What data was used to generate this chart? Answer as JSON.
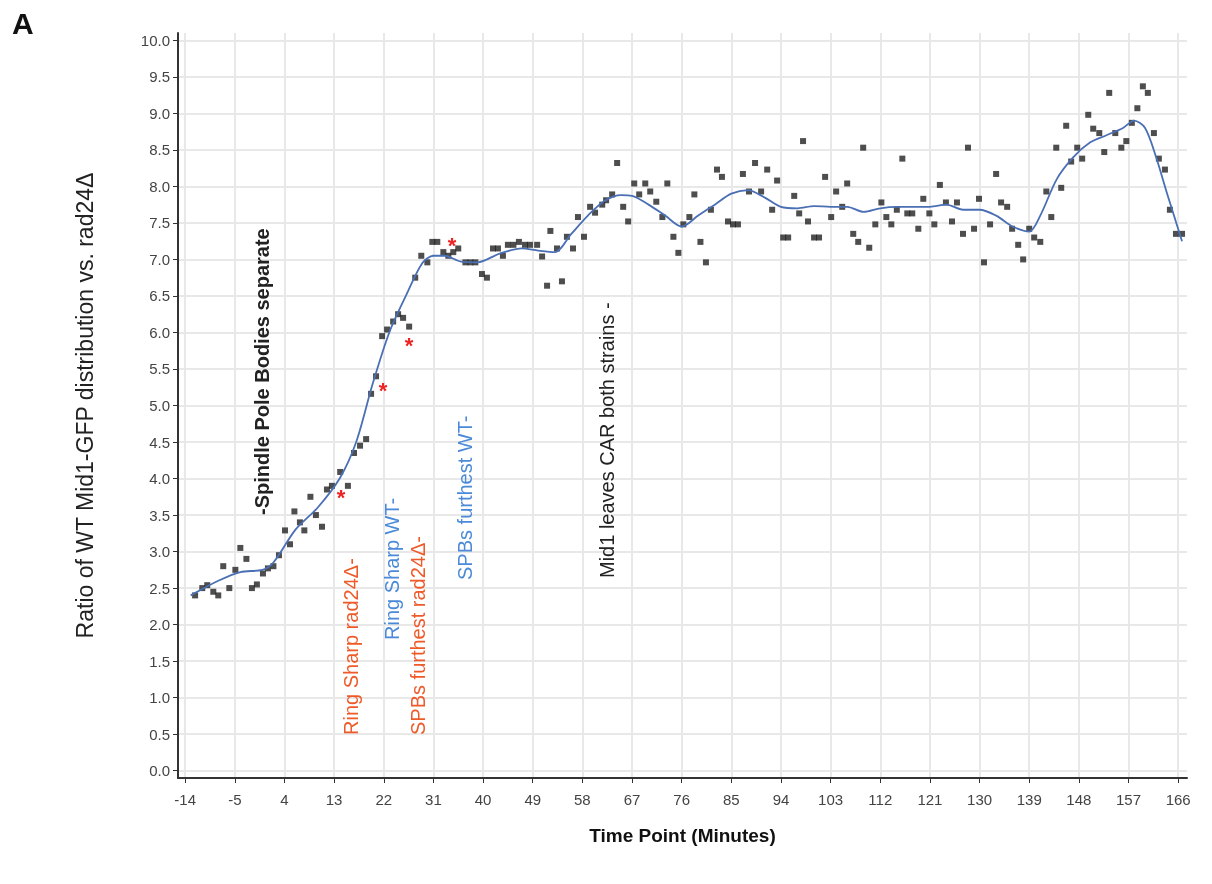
{
  "chart_data": {
    "type": "scatter",
    "xlabel": "Time Point (Minutes)",
    "ylabel": "Ratio of WT Mid1-GFP distribution vs. rad24Δ",
    "xlim": [
      -15.3,
      167.6
    ],
    "ylim": [
      -0.1,
      10.1
    ],
    "xticks": [
      -14,
      -5,
      4,
      13,
      22,
      31,
      40,
      49,
      58,
      67,
      76,
      85,
      94,
      103,
      112,
      121,
      130,
      139,
      148,
      157,
      166
    ],
    "yticks": [
      {
        "value": 0,
        "label": "0.0"
      },
      0.5,
      {
        "value": 1,
        "label": "1.0"
      },
      1.5,
      {
        "value": 2,
        "label": "2.0"
      },
      2.5,
      {
        "value": 3,
        "label": "3.0"
      },
      3.5,
      {
        "value": 4,
        "label": "4.0"
      },
      4.5,
      {
        "value": 5,
        "label": "5.0"
      },
      5.5,
      {
        "value": 6,
        "label": "6.0"
      },
      6.5,
      {
        "value": 7,
        "label": "7.0"
      },
      7.5,
      {
        "value": 8,
        "label": "8.0"
      },
      8.5,
      {
        "value": 9,
        "label": "9.0"
      },
      9.5,
      {
        "value": 10,
        "label": "10.0"
      }
    ],
    "grid": true,
    "series": [
      {
        "type": "scatter",
        "marker": "square",
        "color": "#222222",
        "x": [
          -12.2,
          -10.9,
          -10,
          -8.9,
          -8,
          -7.1,
          -6,
          -4.9,
          -4,
          -2.9,
          -1.9,
          -1,
          0.1,
          1,
          2,
          3,
          4.1,
          5,
          5.8,
          6.8,
          7.6,
          8.7,
          9.7,
          10.8,
          11.7,
          12.6,
          14.1,
          15.5,
          16.6,
          17.7,
          18.8,
          19.7,
          20.6,
          21.7,
          22.6,
          23.7,
          24.6,
          25.5,
          26.6,
          27.7,
          28.8,
          29.9,
          30.8,
          31.7,
          32.8,
          33.7,
          34.6,
          35.5,
          36.8,
          37.7,
          38.6,
          39.8,
          40.7,
          41.8,
          42.7,
          43.6,
          44.5,
          45.5,
          46.5,
          47.6,
          48.5,
          49.8,
          50.7,
          51.6,
          52.2,
          53.4,
          54.3,
          55.2,
          56.3,
          57.2,
          58.3,
          59.4,
          60.3,
          61.6,
          62.3,
          63.4,
          64.3,
          65.4,
          66.3,
          67.4,
          68.3,
          69.4,
          70.3,
          71.4,
          72.5,
          73.4,
          74.5,
          75.4,
          76.3,
          77.4,
          78.3,
          79.4,
          80.4,
          81.3,
          82.4,
          83.3,
          84.4,
          85.3,
          86.2,
          87.1,
          88.2,
          89.3,
          90.4,
          91.5,
          92.4,
          93.3,
          94.4,
          95.3,
          96.4,
          97.3,
          98,
          98.9,
          100,
          100.9,
          102,
          103.1,
          104,
          105.1,
          106,
          107.1,
          108,
          108.9,
          110,
          111.1,
          112.2,
          113.1,
          114,
          115,
          116,
          116.9,
          117.8,
          118.9,
          119.8,
          120.9,
          121.8,
          122.8,
          123.9,
          125,
          125.9,
          127,
          127.9,
          129,
          129.9,
          130.8,
          131.9,
          133,
          133.9,
          135,
          135.9,
          137,
          137.9,
          139,
          139.9,
          141,
          142.1,
          143,
          143.9,
          144.8,
          145.7,
          146.6,
          147.7,
          148.6,
          149.7,
          150.6,
          151.7,
          152.6,
          153.5,
          154.6,
          155.7,
          156.6,
          157.6,
          158.6,
          159.6,
          160.5,
          161.6,
          162.5,
          163.6,
          164.5,
          165.6,
          166.7
        ],
        "values": [
          2.4,
          2.5,
          2.54,
          2.45,
          2.4,
          2.8,
          2.5,
          2.75,
          3.05,
          2.9,
          2.5,
          2.55,
          2.7,
          2.77,
          2.8,
          2.95,
          3.29,
          3.1,
          3.55,
          3.4,
          3.29,
          3.75,
          3.5,
          3.34,
          3.85,
          3.9,
          4.09,
          3.9,
          4.35,
          4.45,
          4.54,
          5.16,
          5.4,
          5.95,
          6.04,
          6.15,
          6.25,
          6.2,
          6.08,
          6.75,
          7.05,
          6.96,
          7.24,
          7.24,
          7.1,
          7.05,
          7.1,
          7.15,
          6.96,
          6.96,
          6.96,
          6.8,
          6.75,
          7.15,
          7.15,
          7.05,
          7.2,
          7.2,
          7.24,
          7.2,
          7.2,
          7.2,
          7.04,
          6.64,
          7.39,
          7.15,
          6.7,
          7.31,
          7.15,
          7.58,
          7.31,
          7.72,
          7.64,
          7.75,
          7.81,
          7.89,
          8.32,
          7.72,
          7.52,
          8.04,
          7.89,
          8.04,
          7.93,
          7.79,
          7.58,
          8.04,
          7.31,
          7.09,
          7.48,
          7.58,
          7.89,
          7.24,
          6.96,
          7.68,
          8.23,
          8.13,
          7.52,
          7.48,
          7.48,
          8.17,
          7.93,
          8.32,
          7.93,
          8.23,
          7.68,
          8.08,
          7.3,
          7.3,
          7.87,
          7.63,
          8.62,
          7.52,
          7.3,
          7.3,
          8.13,
          7.58,
          7.93,
          7.72,
          8.04,
          7.35,
          7.24,
          8.53,
          7.16,
          7.48,
          7.78,
          7.58,
          7.48,
          7.68,
          8.38,
          7.63,
          7.63,
          7.42,
          7.83,
          7.63,
          7.48,
          8.02,
          7.78,
          7.52,
          7.78,
          7.35,
          8.53,
          7.42,
          7.83,
          6.96,
          7.48,
          8.17,
          7.78,
          7.72,
          7.42,
          7.2,
          7.0,
          7.42,
          7.3,
          7.24,
          7.93,
          7.58,
          8.53,
          7.98,
          8.83,
          8.34,
          8.53,
          8.38,
          8.98,
          8.79,
          8.73,
          8.47,
          9.28,
          8.73,
          8.53,
          8.62,
          8.87,
          9.07,
          9.37,
          9.28,
          8.73,
          8.38,
          8.23,
          7.68,
          7.35,
          7.35
        ]
      },
      {
        "type": "line",
        "marker": "none",
        "line_style": "solid",
        "color": "#4a6fb5",
        "x": [
          -13,
          -8,
          -4,
          0,
          2,
          6,
          10,
          14,
          17,
          20,
          23,
          26,
          29,
          31,
          33,
          36,
          39,
          43,
          47,
          50,
          53,
          56,
          59,
          62,
          65,
          67,
          70,
          73,
          76,
          79,
          82,
          85,
          88,
          91,
          94,
          97,
          100,
          103,
          106,
          109,
          112,
          115,
          118,
          121,
          124,
          127,
          130,
          133,
          136,
          139,
          141,
          144,
          147,
          150,
          153,
          156,
          158,
          160,
          162,
          164,
          166.7
        ],
        "values": [
          2.4,
          2.6,
          2.72,
          2.75,
          2.85,
          3.3,
          3.6,
          4.0,
          4.5,
          5.3,
          6.0,
          6.5,
          6.95,
          7.05,
          7.05,
          6.97,
          6.96,
          7.08,
          7.15,
          7.12,
          7.1,
          7.35,
          7.6,
          7.8,
          7.88,
          7.87,
          7.75,
          7.6,
          7.45,
          7.6,
          7.75,
          7.9,
          7.95,
          7.85,
          7.72,
          7.7,
          7.73,
          7.72,
          7.72,
          7.65,
          7.7,
          7.72,
          7.72,
          7.72,
          7.75,
          7.68,
          7.68,
          7.6,
          7.45,
          7.38,
          7.6,
          8.1,
          8.4,
          8.6,
          8.7,
          8.8,
          8.9,
          8.8,
          8.4,
          7.9,
          7.25
        ]
      }
    ],
    "annotations": [
      "A",
      "-Spindle Pole Bodies separate",
      "Ring Sharp rad24Δ-",
      "Ring Sharp WT-",
      "SPBs furthest rad24Δ-",
      "SPBs furthest WT-",
      "Mid1 leaves CAR both strains -",
      "*",
      "*",
      "*",
      "*"
    ]
  }
}
